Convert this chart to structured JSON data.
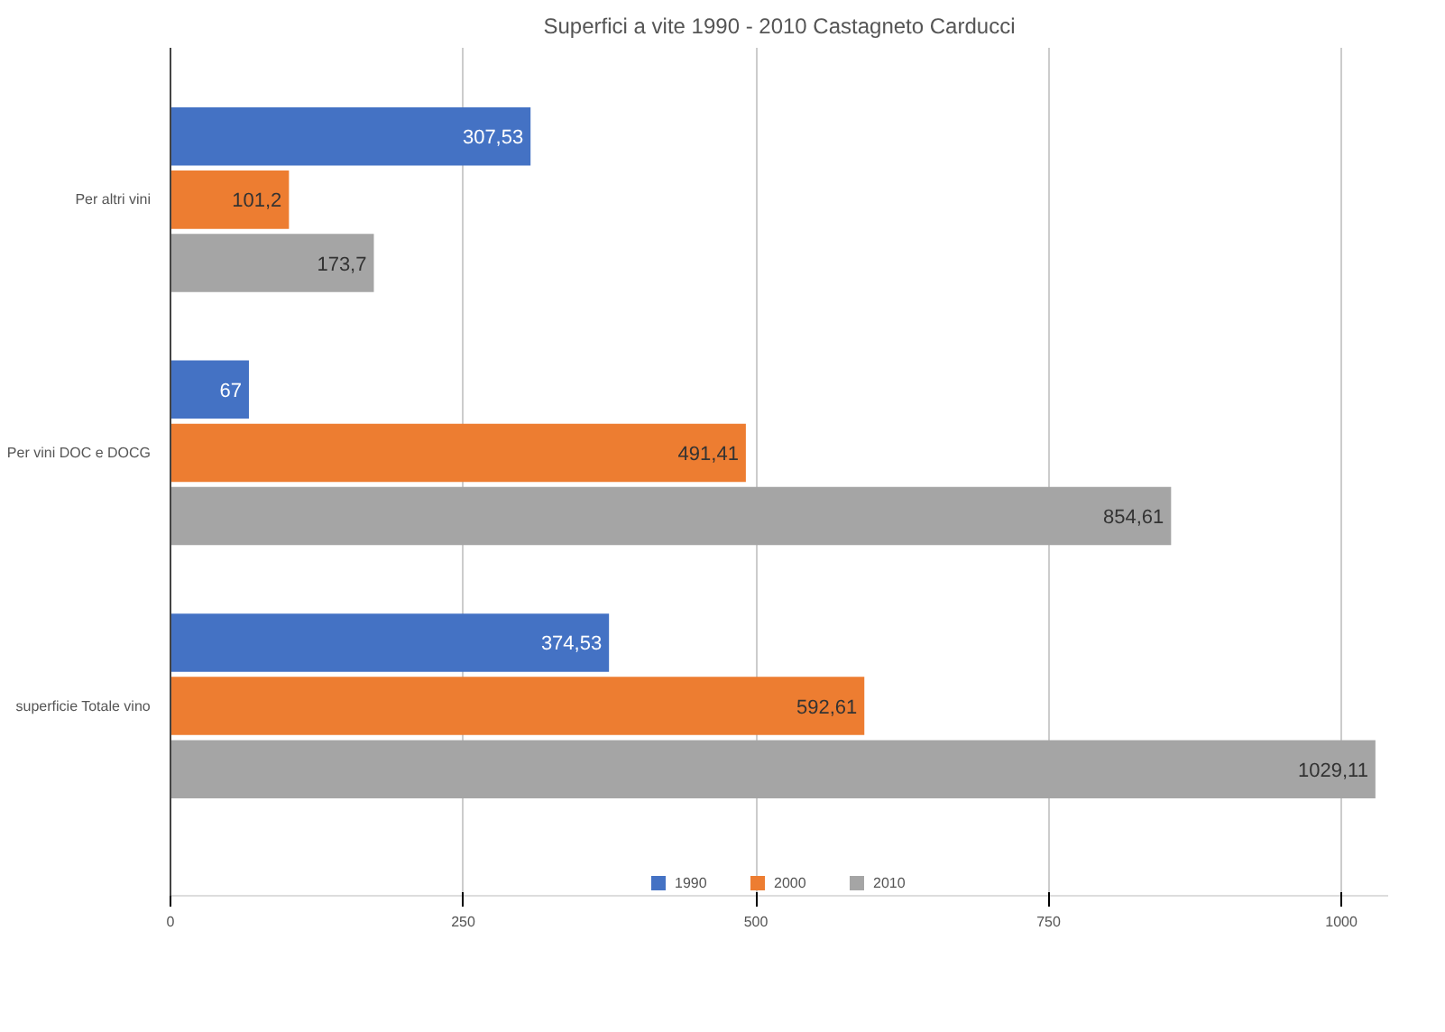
{
  "chart_data": {
    "type": "bar",
    "orientation": "horizontal",
    "title": "Superfici a vite 1990 - 2010 Castagneto Carducci",
    "categories": [
      "Per altri vini",
      "Per vini DOC e DOCG",
      "superficie Totale vino"
    ],
    "series": [
      {
        "name": "1990",
        "color": "#4472c4",
        "values": [
          307.53,
          67,
          374.53
        ],
        "value_labels": [
          "307,53",
          "67",
          "374,53"
        ]
      },
      {
        "name": "2000",
        "color": "#ed7d31",
        "values": [
          101.2,
          491.41,
          592.61
        ],
        "value_labels": [
          "101,2",
          "491,41",
          "592,61"
        ]
      },
      {
        "name": "2010",
        "color": "#a5a5a5",
        "values": [
          173.7,
          854.61,
          1029.11
        ],
        "value_labels": [
          "173,7",
          "854,61",
          "1029,11"
        ]
      }
    ],
    "xlim": [
      0,
      1040
    ],
    "xticks": [
      0,
      250,
      500,
      750,
      1000
    ],
    "grid": "x",
    "legend": "bottom"
  }
}
